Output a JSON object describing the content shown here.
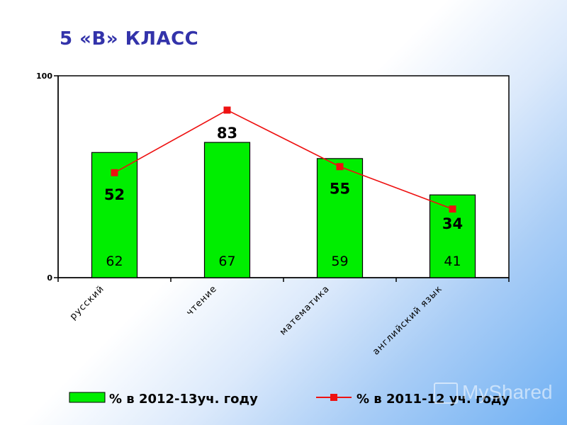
{
  "slide": {
    "title": "5 «В» КЛАСС"
  },
  "watermark": {
    "text": "MyShared"
  },
  "colors": {
    "bar": "#00ee00",
    "line": "#ee1111",
    "title": "#3333aa"
  },
  "chart_data": {
    "type": "bar",
    "categories": [
      "русский",
      "чтение",
      "математика",
      "английский язык"
    ],
    "series": [
      {
        "name": "% в 2012-13уч. году",
        "type": "bar",
        "values": [
          62,
          67,
          59,
          41
        ]
      },
      {
        "name": "% в 2011-12 уч. году",
        "type": "line",
        "values": [
          52,
          83,
          55,
          34
        ]
      }
    ],
    "ylim": [
      0,
      100
    ],
    "yticks": [
      0,
      100
    ],
    "legend": "bottom"
  }
}
